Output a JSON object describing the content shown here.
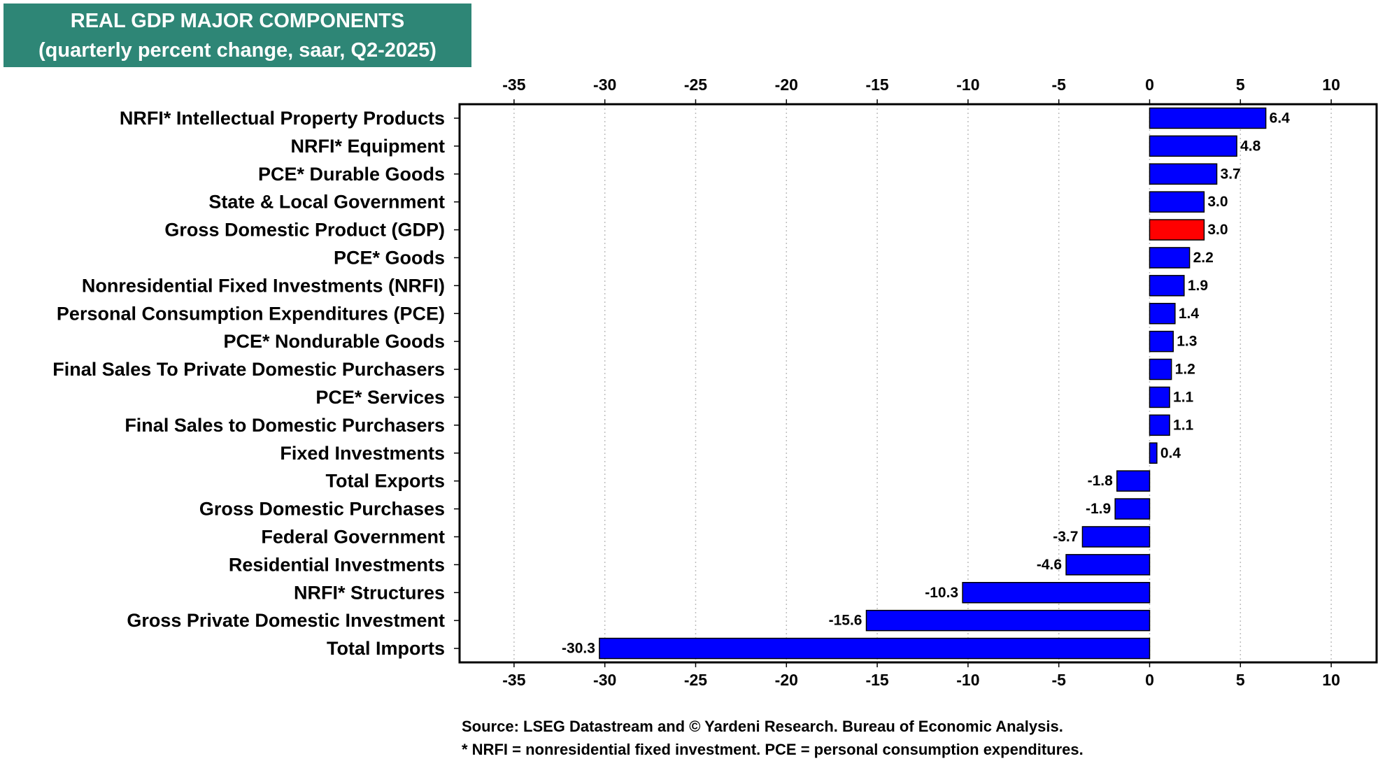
{
  "chart_data": {
    "type": "bar",
    "orientation": "horizontal",
    "title": "REAL GDP MAJOR COMPONENTS",
    "subtitle": "(quarterly percent change, saar, Q2-2025)",
    "xlim": [
      -38,
      12.5
    ],
    "xticks": [
      -35,
      -30,
      -25,
      -20,
      -15,
      -10,
      -5,
      0,
      5,
      10
    ],
    "grid": "vertical dotted",
    "tick_labels_position": "top and bottom",
    "categories": [
      "NRFI* Intellectual Property Products",
      "NRFI* Equipment",
      "PCE* Durable Goods",
      "State & Local Government",
      "Gross Domestic Product (GDP)",
      "PCE* Goods",
      "Nonresidential Fixed Investments (NRFI)",
      "Personal Consumption Expenditures (PCE)",
      "PCE* Nondurable Goods",
      "Final Sales To Private Domestic Purchasers",
      "PCE* Services",
      "Final Sales to Domestic Purchasers",
      "Fixed Investments",
      "Total Exports",
      "Gross Domestic Purchases",
      "Federal Government",
      "Residential Investments",
      "NRFI* Structures",
      "Gross Private Domestic Investment",
      "Total Imports"
    ],
    "values": [
      6.4,
      4.8,
      3.7,
      3.0,
      3.0,
      2.2,
      1.9,
      1.4,
      1.3,
      1.2,
      1.1,
      1.1,
      0.4,
      -1.8,
      -1.9,
      -3.7,
      -4.6,
      -10.3,
      -15.6,
      -30.3
    ],
    "value_labels": [
      "6.4",
      "4.8",
      "3.7",
      "3.0",
      "3.0",
      "2.2",
      "1.9",
      "1.4",
      "1.3",
      "1.2",
      "1.1",
      "1.1",
      "0.4",
      "-1.8",
      "-1.9",
      "-3.7",
      "-4.6",
      "-10.3",
      "-15.6",
      "-30.3"
    ],
    "highlight_index": 4,
    "colors": {
      "bar": "#0000ff",
      "highlight": "#ff0000",
      "title_bg": "#2e8676",
      "title_text": "#ffffff"
    }
  },
  "notes": {
    "source": "Source: LSEG Datastream and © Yardeni Research. Bureau of Economic Analysis.",
    "footnote": "* NRFI = nonresidential fixed investment. PCE = personal consumption expenditures."
  }
}
